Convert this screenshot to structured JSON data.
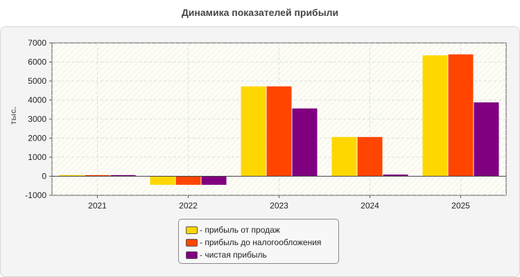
{
  "chart_data": {
    "type": "bar",
    "title": "Динамика показателей прибыли",
    "ylabel": "тыс.",
    "xlabel": "",
    "categories": [
      "2021",
      "2022",
      "2023",
      "2024",
      "2025"
    ],
    "ylim": [
      -1000,
      7000
    ],
    "yticks": [
      -1000,
      0,
      1000,
      2000,
      3000,
      4000,
      5000,
      6000,
      7000
    ],
    "grid": true,
    "legend_position": "bottom",
    "series": [
      {
        "name": "- прибыль от продаж",
        "color": "#FFD700",
        "values": [
          60,
          -450,
          4720,
          2060,
          6350
        ]
      },
      {
        "name": "- прибыль до налогообложения",
        "color": "#FF4500",
        "values": [
          60,
          -450,
          4720,
          2060,
          6400
        ]
      },
      {
        "name": "- чистая прибыль",
        "color": "#800080",
        "values": [
          60,
          -450,
          3560,
          90,
          3880
        ]
      }
    ]
  }
}
